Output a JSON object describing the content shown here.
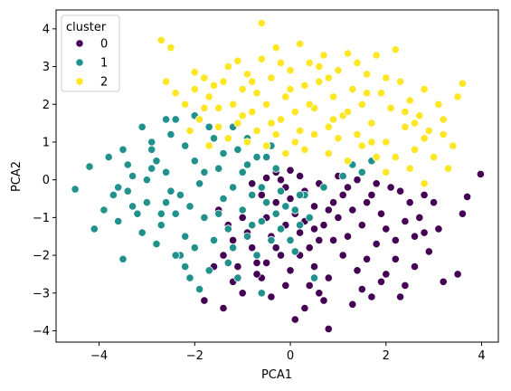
{
  "chart_data": {
    "type": "scatter",
    "xlabel": "PCA1",
    "ylabel": "PCA2",
    "xlim": [
      -4.9,
      4.35
    ],
    "ylim": [
      -4.3,
      4.5
    ],
    "xticks": [
      -4,
      -2,
      0,
      2,
      4
    ],
    "yticks": [
      -4,
      -3,
      -2,
      -1,
      0,
      1,
      2,
      3,
      4
    ],
    "grid": false,
    "legend": {
      "title": "cluster",
      "placement": "top-left",
      "entries": [
        "0",
        "1",
        "2"
      ]
    },
    "series": [
      {
        "name": "0",
        "color": "#440154",
        "points": [
          [
            3.98,
            0.15
          ],
          [
            3.7,
            -0.45
          ],
          [
            3.6,
            -0.9
          ],
          [
            3.1,
            -1.3
          ],
          [
            3.5,
            -2.5
          ],
          [
            3.2,
            -2.7
          ],
          [
            2.9,
            -1.9
          ],
          [
            2.7,
            -1.0
          ],
          [
            2.5,
            -0.6
          ],
          [
            2.3,
            -0.3
          ],
          [
            2.1,
            -0.2
          ],
          [
            2.6,
            -1.5
          ],
          [
            2.4,
            -1.1
          ],
          [
            2.2,
            -1.6
          ],
          [
            2.0,
            -1.3
          ],
          [
            1.9,
            -0.9
          ],
          [
            1.7,
            -0.4
          ],
          [
            1.8,
            -1.7
          ],
          [
            1.5,
            -1.2
          ],
          [
            1.3,
            -0.8
          ],
          [
            1.6,
            -2.1
          ],
          [
            1.4,
            -2.4
          ],
          [
            1.2,
            -1.5
          ],
          [
            1.0,
            -1.0
          ],
          [
            0.9,
            -0.6
          ],
          [
            1.1,
            -2.0
          ],
          [
            0.8,
            -2.6
          ],
          [
            1.5,
            -2.9
          ],
          [
            1.7,
            -3.1
          ],
          [
            2.3,
            -3.1
          ],
          [
            2.0,
            -2.5
          ],
          [
            2.6,
            -2.3
          ],
          [
            1.3,
            -3.3
          ],
          [
            0.7,
            -3.2
          ],
          [
            0.3,
            -3.4
          ],
          [
            0.8,
            -3.95
          ],
          [
            0.6,
            -3.0
          ],
          [
            0.5,
            -2.3
          ],
          [
            0.4,
            -1.8
          ],
          [
            0.2,
            -1.4
          ],
          [
            0.1,
            -0.9
          ],
          [
            0.0,
            -0.5
          ],
          [
            -0.1,
            -0.2
          ],
          [
            0.3,
            -0.3
          ],
          [
            0.5,
            -0.7
          ],
          [
            0.7,
            -1.2
          ],
          [
            0.9,
            -1.6
          ],
          [
            0.6,
            -0.1
          ],
          [
            0.2,
            0.1
          ],
          [
            0.0,
            0.25
          ],
          [
            -0.2,
            0.0
          ],
          [
            -0.3,
            -0.6
          ],
          [
            -0.5,
            -1.0
          ],
          [
            -0.4,
            -1.5
          ],
          [
            -0.2,
            -2.0
          ],
          [
            0.0,
            -2.4
          ],
          [
            -0.1,
            -2.8
          ],
          [
            0.1,
            -3.7
          ],
          [
            -0.4,
            -3.1
          ],
          [
            -0.6,
            -2.6
          ],
          [
            -0.7,
            -2.2
          ],
          [
            -0.8,
            -1.8
          ],
          [
            -0.9,
            -1.4
          ],
          [
            -1.0,
            -1.0
          ],
          [
            -1.2,
            -1.6
          ],
          [
            -1.4,
            -2.0
          ],
          [
            -1.6,
            -2.3
          ],
          [
            -1.8,
            -3.2
          ],
          [
            -1.4,
            -3.4
          ],
          [
            -1.2,
            -2.7
          ],
          [
            -1.0,
            -3.0
          ],
          [
            -0.6,
            -0.4
          ],
          [
            -0.8,
            -0.1
          ],
          [
            -0.5,
            0.05
          ],
          [
            -0.3,
            0.2
          ],
          [
            1.0,
            0.1
          ],
          [
            1.2,
            -0.2
          ],
          [
            1.4,
            0.0
          ],
          [
            1.6,
            -0.6
          ],
          [
            1.8,
            -0.1
          ],
          [
            2.8,
            -0.4
          ],
          [
            3.0,
            -0.6
          ],
          [
            2.4,
            -2.8
          ],
          [
            0.4,
            -2.8
          ],
          [
            0.6,
            -1.6
          ],
          [
            0.8,
            -0.8
          ],
          [
            1.1,
            -0.4
          ],
          [
            0.3,
            -1.1
          ],
          [
            -0.1,
            -1.2
          ],
          [
            -0.3,
            -1.8
          ],
          [
            -0.5,
            -2.2
          ],
          [
            -0.7,
            -2.5
          ],
          [
            -1.1,
            -2.3
          ],
          [
            -1.3,
            -1.2
          ],
          [
            -1.5,
            -0.8
          ],
          [
            2.2,
            -2.1
          ],
          [
            2.8,
            -1.4
          ],
          [
            1.9,
            -2.7
          ],
          [
            0.2,
            -2.0
          ],
          [
            0.5,
            -1.3
          ]
        ]
      },
      {
        "name": "1",
        "color": "#21918c",
        "points": [
          [
            -4.5,
            -0.25
          ],
          [
            -4.2,
            0.35
          ],
          [
            -4.1,
            -1.3
          ],
          [
            -3.6,
            -1.1
          ],
          [
            -3.7,
            -0.4
          ],
          [
            -3.5,
            -2.1
          ],
          [
            -3.4,
            0.4
          ],
          [
            -3.3,
            0.1
          ],
          [
            -3.1,
            1.4
          ],
          [
            -3.0,
            -0.6
          ],
          [
            -3.2,
            -0.9
          ],
          [
            -2.9,
            0.8
          ],
          [
            -2.8,
            -1.7
          ],
          [
            -2.7,
            -1.2
          ],
          [
            -2.6,
            0.2
          ],
          [
            -2.5,
            -0.3
          ],
          [
            -2.4,
            1.6
          ],
          [
            -2.3,
            -2.0
          ],
          [
            -2.2,
            -1.5
          ],
          [
            -2.1,
            -0.7
          ],
          [
            -2.0,
            0.5
          ],
          [
            -1.9,
            -0.1
          ],
          [
            -1.8,
            -1.0
          ],
          [
            -1.7,
            -2.4
          ],
          [
            -1.6,
            1.1
          ],
          [
            -1.5,
            0.3
          ],
          [
            -1.4,
            -0.5
          ],
          [
            -1.3,
            -1.3
          ],
          [
            -1.2,
            -0.2
          ],
          [
            -1.1,
            0.8
          ],
          [
            -1.0,
            -0.8
          ],
          [
            -0.9,
            0.4
          ],
          [
            -0.8,
            -0.4
          ],
          [
            -0.7,
            0.6
          ],
          [
            -0.6,
            -1.1
          ],
          [
            -0.5,
            -0.6
          ],
          [
            -0.4,
            0.9
          ],
          [
            -0.3,
            -0.9
          ],
          [
            -0.2,
            -1.3
          ],
          [
            -0.1,
            -0.7
          ],
          [
            0.0,
            -1.6
          ],
          [
            0.1,
            -1.9
          ],
          [
            0.2,
            -1.2
          ],
          [
            0.3,
            -0.4
          ],
          [
            0.5,
            -2.6
          ],
          [
            -0.6,
            -3.0
          ],
          [
            -0.7,
            -2.0
          ],
          [
            -1.9,
            -2.9
          ],
          [
            -2.0,
            -1.8
          ],
          [
            -2.2,
            -2.3
          ],
          [
            -2.4,
            -0.9
          ],
          [
            -2.6,
            -0.6
          ],
          [
            -2.8,
            0.5
          ],
          [
            -3.0,
            0.0
          ],
          [
            -3.3,
            -0.7
          ],
          [
            -3.6,
            -0.2
          ],
          [
            -3.8,
            0.6
          ],
          [
            -2.2,
            0.9
          ],
          [
            -1.8,
            0.2
          ],
          [
            -1.5,
            -0.9
          ],
          [
            -1.2,
            -1.8
          ],
          [
            -0.9,
            -1.5
          ],
          [
            -0.6,
            -0.2
          ],
          [
            -0.4,
            -1.6
          ],
          [
            -0.2,
            -0.3
          ],
          [
            0.1,
            -0.8
          ],
          [
            0.4,
            -1.0
          ],
          [
            0.7,
            -0.2
          ],
          [
            1.1,
            0.1
          ],
          [
            1.3,
            0.4
          ],
          [
            1.5,
            0.2
          ],
          [
            1.7,
            0.5
          ],
          [
            -1.7,
            1.4
          ],
          [
            -2.5,
            1.2
          ],
          [
            -2.9,
            1.0
          ],
          [
            -1.4,
            0.7
          ],
          [
            -1.0,
            0.2
          ],
          [
            -0.8,
            -1.2
          ],
          [
            -1.6,
            -1.6
          ],
          [
            -2.3,
            -0.4
          ],
          [
            -2.7,
            -0.9
          ],
          [
            -3.1,
            -1.4
          ],
          [
            -1.3,
            -2.2
          ],
          [
            -1.1,
            -2.6
          ],
          [
            -2.1,
            -2.6
          ],
          [
            -2.4,
            -2.0
          ],
          [
            0.2,
            -0.4
          ],
          [
            -0.3,
            0.3
          ],
          [
            -0.5,
            0.6
          ],
          [
            -0.9,
            1.1
          ],
          [
            -1.2,
            1.4
          ],
          [
            -2.0,
            1.7
          ],
          [
            -2.6,
            1.6
          ],
          [
            -2.9,
            0.3
          ],
          [
            -3.4,
            -0.3
          ],
          [
            -3.9,
            -0.8
          ],
          [
            -3.5,
            0.8
          ]
        ]
      },
      {
        "name": "2",
        "color": "#fde725",
        "points": [
          [
            -0.6,
            4.15
          ],
          [
            -2.7,
            3.7
          ],
          [
            -2.5,
            3.5
          ],
          [
            -2.6,
            2.6
          ],
          [
            -2.4,
            2.3
          ],
          [
            -2.0,
            2.85
          ],
          [
            -1.8,
            2.7
          ],
          [
            -1.7,
            2.2
          ],
          [
            -1.5,
            1.9
          ],
          [
            -1.4,
            2.6
          ],
          [
            -1.3,
            3.0
          ],
          [
            -1.1,
            3.15
          ],
          [
            -1.0,
            2.4
          ],
          [
            -0.9,
            2.8
          ],
          [
            -0.8,
            1.8
          ],
          [
            -0.7,
            2.3
          ],
          [
            -0.6,
            3.2
          ],
          [
            -0.5,
            2.0
          ],
          [
            -0.4,
            2.7
          ],
          [
            -0.3,
            3.5
          ],
          [
            -0.2,
            1.6
          ],
          [
            -0.1,
            2.2
          ],
          [
            0.0,
            2.9
          ],
          [
            0.1,
            1.8
          ],
          [
            0.2,
            3.6
          ],
          [
            0.3,
            2.5
          ],
          [
            0.4,
            3.1
          ],
          [
            0.5,
            1.9
          ],
          [
            0.6,
            2.6
          ],
          [
            0.7,
            3.3
          ],
          [
            0.8,
            1.4
          ],
          [
            0.9,
            2.2
          ],
          [
            1.0,
            2.9
          ],
          [
            1.1,
            1.7
          ],
          [
            1.2,
            3.35
          ],
          [
            1.3,
            2.4
          ],
          [
            1.4,
            1.2
          ],
          [
            1.5,
            2.0
          ],
          [
            1.6,
            2.8
          ],
          [
            1.7,
            1.5
          ],
          [
            1.8,
            3.3
          ],
          [
            1.9,
            2.3
          ],
          [
            2.0,
            1.0
          ],
          [
            2.1,
            1.9
          ],
          [
            2.2,
            3.45
          ],
          [
            2.3,
            2.6
          ],
          [
            2.4,
            1.4
          ],
          [
            2.5,
            2.1
          ],
          [
            2.6,
            0.8
          ],
          [
            2.7,
            1.7
          ],
          [
            2.8,
            2.4
          ],
          [
            2.9,
            1.3
          ],
          [
            3.0,
            0.6
          ],
          [
            3.1,
            2.0
          ],
          [
            3.2,
            1.6
          ],
          [
            3.4,
            0.9
          ],
          [
            3.5,
            2.2
          ],
          [
            3.6,
            2.55
          ],
          [
            3.3,
            0.3
          ],
          [
            2.8,
            -0.1
          ],
          [
            2.5,
            0.3
          ],
          [
            2.2,
            0.6
          ],
          [
            2.0,
            0.2
          ],
          [
            1.8,
            0.6
          ],
          [
            1.5,
            0.9
          ],
          [
            1.2,
            0.5
          ],
          [
            1.0,
            1.1
          ],
          [
            0.8,
            0.7
          ],
          [
            0.5,
            1.2
          ],
          [
            0.3,
            0.8
          ],
          [
            0.1,
            1.0
          ],
          [
            -0.1,
            0.7
          ],
          [
            -0.3,
            1.2
          ],
          [
            -0.5,
            0.9
          ],
          [
            -0.7,
            1.3
          ],
          [
            -0.9,
            1.0
          ],
          [
            -1.1,
            1.5
          ],
          [
            -1.3,
            1.1
          ],
          [
            -1.5,
            1.4
          ],
          [
            -1.7,
            0.9
          ],
          [
            -1.9,
            1.6
          ],
          [
            -2.1,
            1.3
          ],
          [
            -2.2,
            2.0
          ],
          [
            -2.0,
            2.4
          ],
          [
            -1.6,
            2.5
          ],
          [
            -1.2,
            2.0
          ],
          [
            -0.8,
            2.6
          ],
          [
            -0.4,
            1.5
          ],
          [
            0.0,
            2.4
          ],
          [
            0.4,
            2.0
          ],
          [
            0.8,
            2.7
          ],
          [
            1.2,
            1.8
          ],
          [
            1.6,
            2.3
          ],
          [
            2.0,
            2.7
          ],
          [
            2.4,
            1.8
          ],
          [
            2.8,
            1.1
          ],
          [
            3.2,
            1.2
          ],
          [
            1.4,
            3.1
          ],
          [
            0.6,
            3.0
          ],
          [
            -0.2,
            3.1
          ],
          [
            -1.0,
            1.7
          ],
          [
            -1.8,
            1.9
          ],
          [
            0.9,
            1.6
          ],
          [
            1.7,
            1.0
          ],
          [
            2.6,
            1.5
          ],
          [
            0.2,
            1.3
          ]
        ]
      }
    ]
  }
}
